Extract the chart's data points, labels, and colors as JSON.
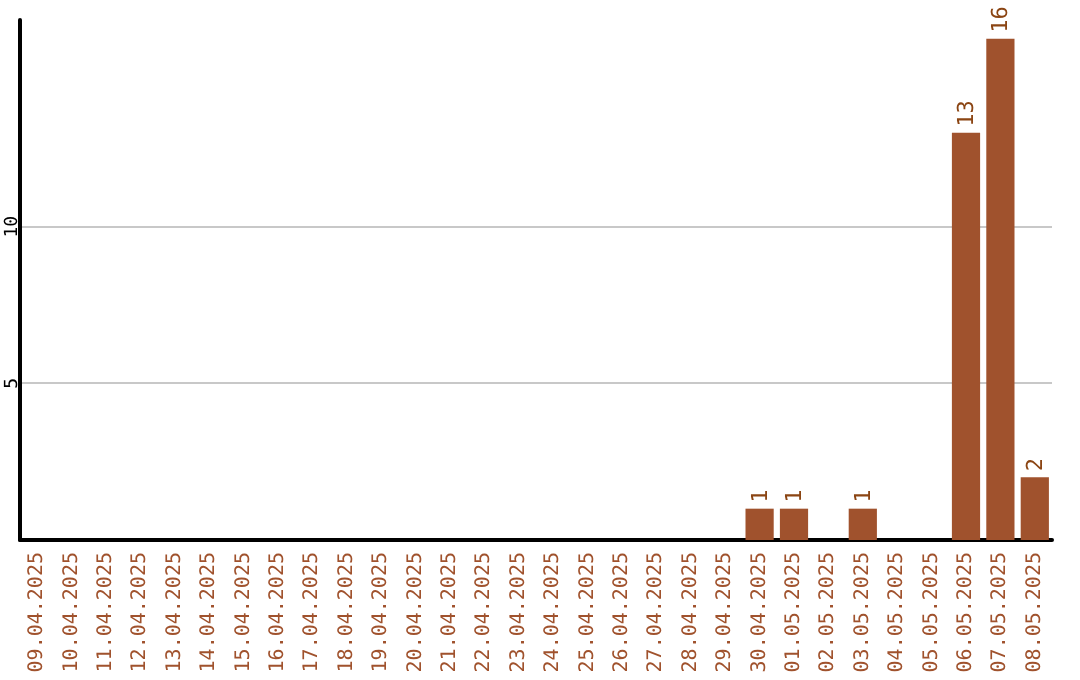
{
  "chart_data": {
    "type": "bar",
    "categories": [
      "09.04.2025",
      "10.04.2025",
      "11.04.2025",
      "12.04.2025",
      "13.04.2025",
      "14.04.2025",
      "15.04.2025",
      "16.04.2025",
      "17.04.2025",
      "18.04.2025",
      "19.04.2025",
      "20.04.2025",
      "21.04.2025",
      "22.04.2025",
      "23.04.2025",
      "24.04.2025",
      "25.04.2025",
      "26.04.2025",
      "27.04.2025",
      "28.04.2025",
      "29.04.2025",
      "30.04.2025",
      "01.05.2025",
      "02.05.2025",
      "03.05.2025",
      "04.05.2025",
      "05.05.2025",
      "06.05.2025",
      "07.05.2025",
      "08.05.2025"
    ],
    "values": [
      0,
      0,
      0,
      0,
      0,
      0,
      0,
      0,
      0,
      0,
      0,
      0,
      0,
      0,
      0,
      0,
      0,
      0,
      0,
      0,
      0,
      1,
      1,
      0,
      1,
      0,
      0,
      13,
      16,
      2
    ],
    "value_labels": [
      null,
      null,
      null,
      null,
      null,
      null,
      null,
      null,
      null,
      null,
      null,
      null,
      null,
      null,
      null,
      null,
      null,
      null,
      null,
      null,
      null,
      "1",
      "1",
      null,
      "1",
      null,
      null,
      "13",
      "16",
      "2"
    ],
    "color": "#a0522d",
    "ylim": [
      0,
      16.6
    ],
    "yticks": [
      5,
      10
    ],
    "grid": "y"
  }
}
